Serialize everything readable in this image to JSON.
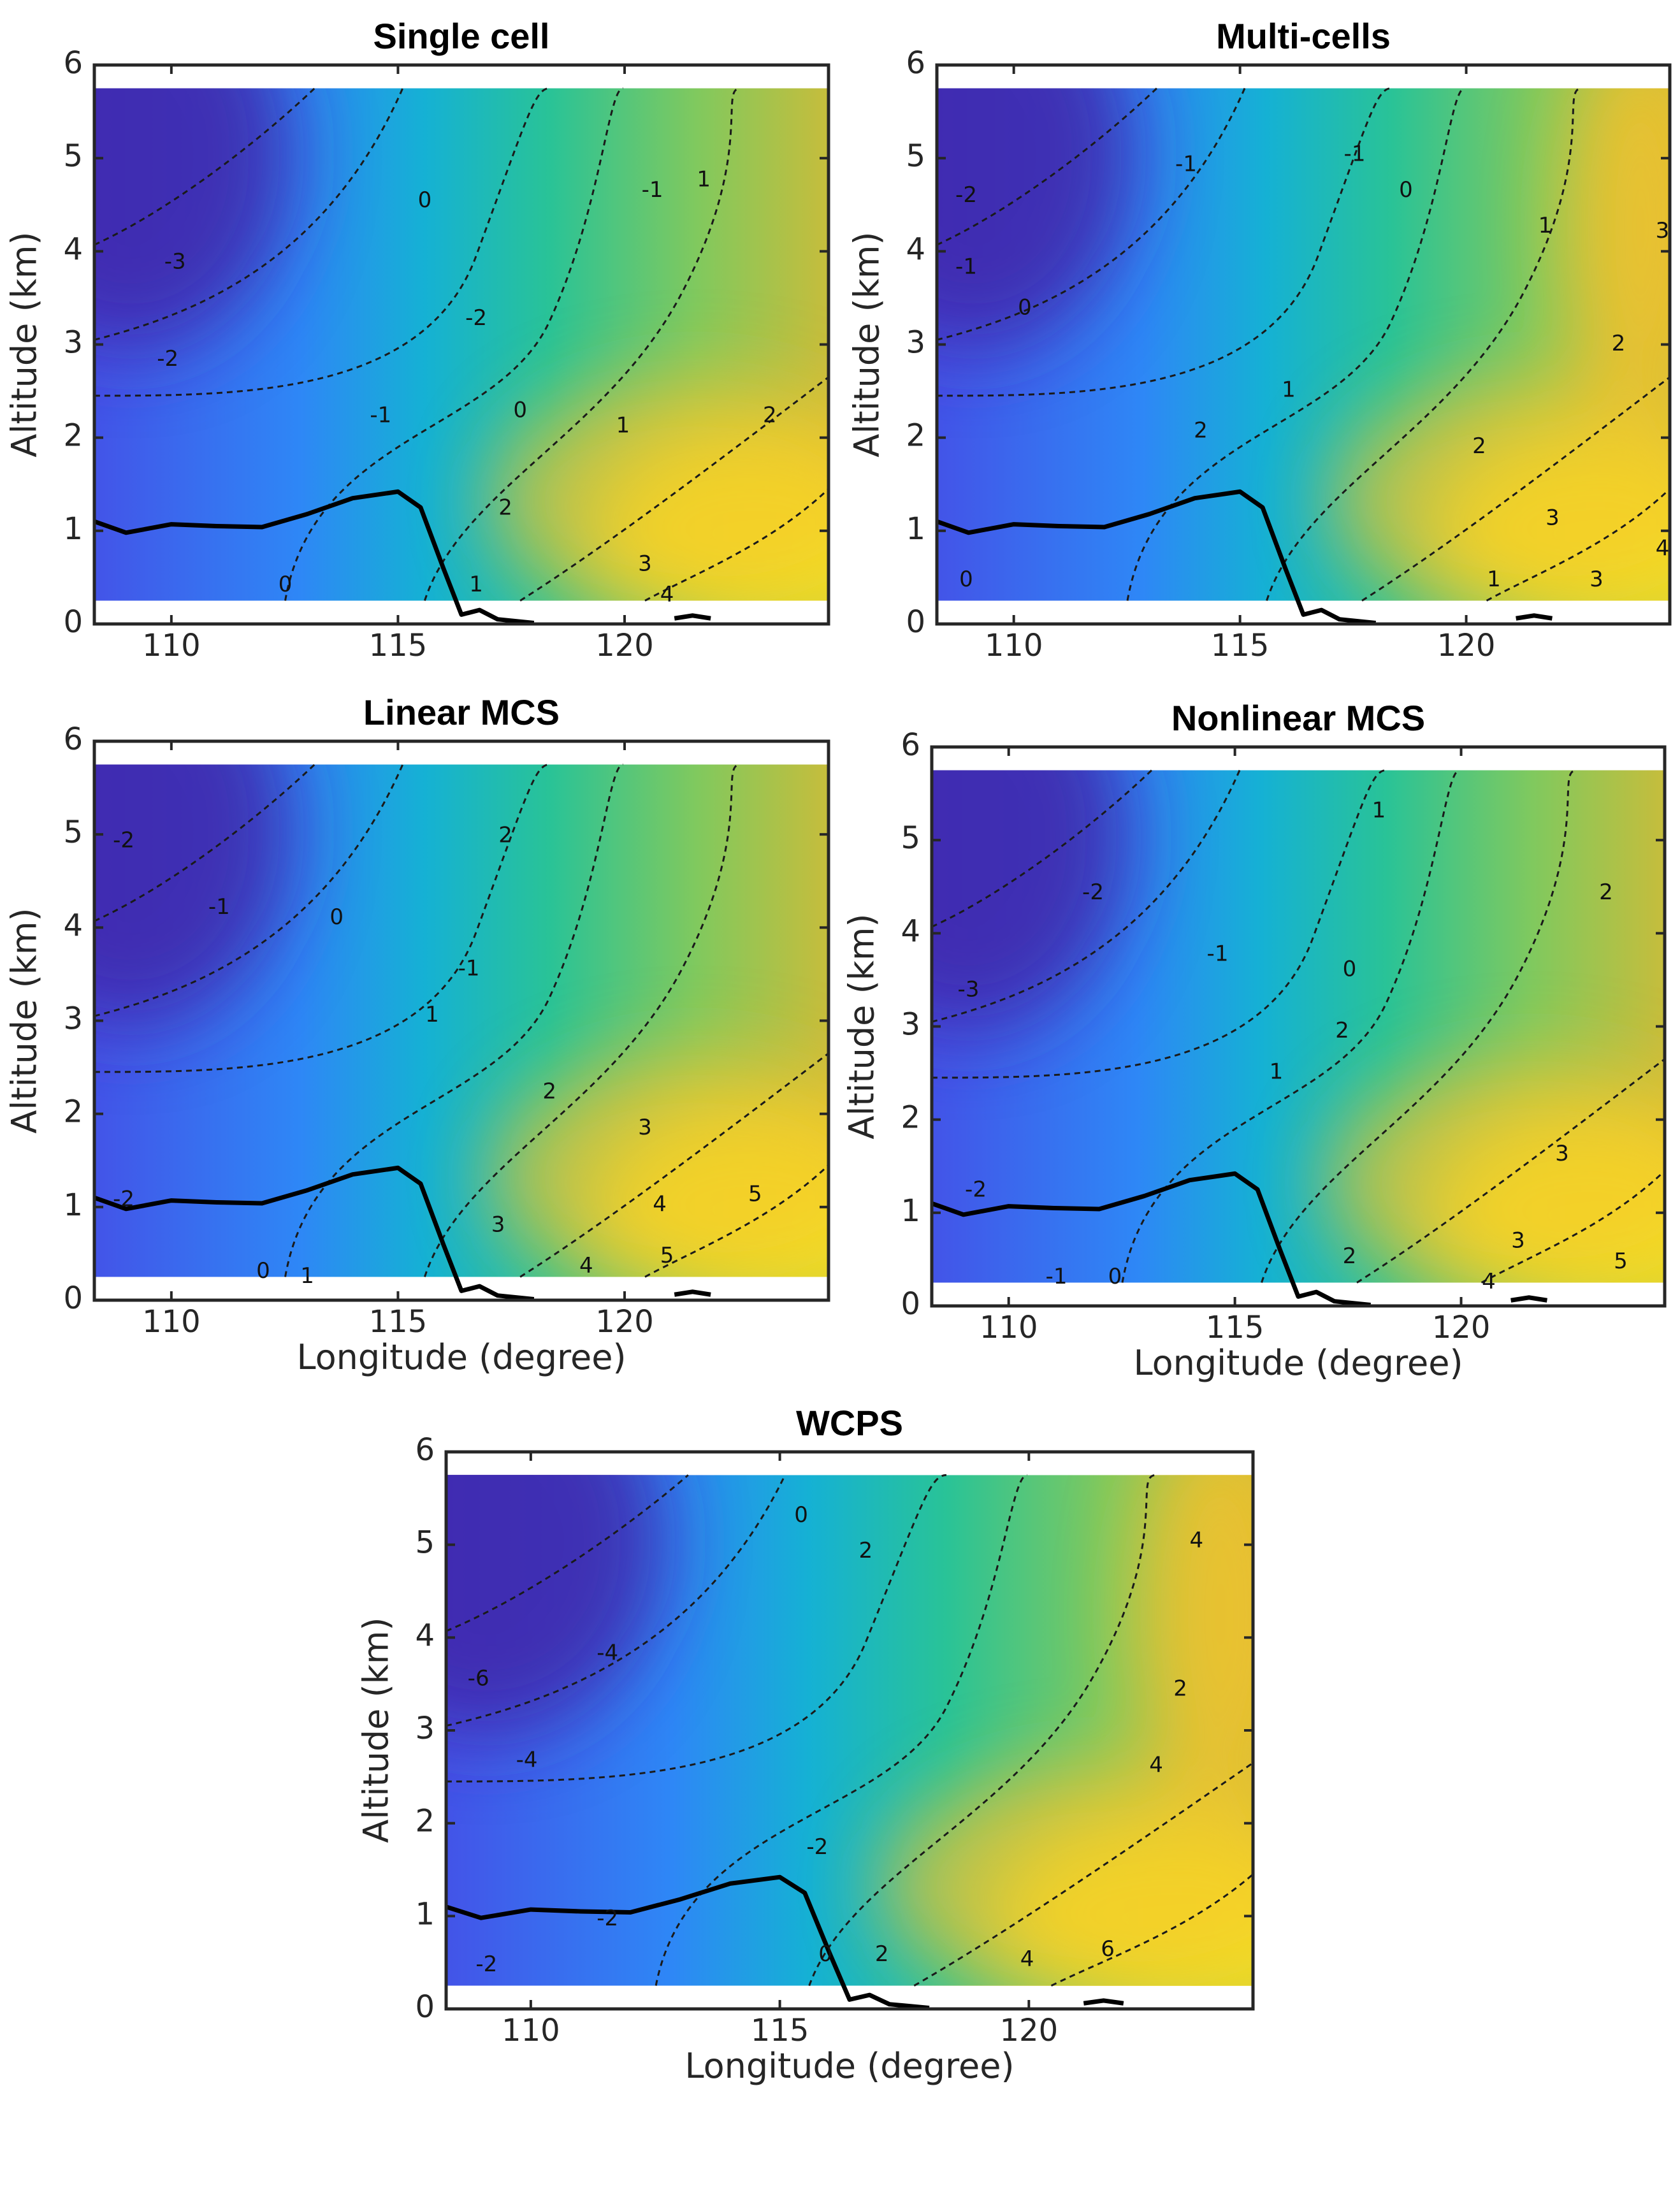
{
  "figure": {
    "y_axis_label": "Altitude (km)",
    "x_axis_label": "Longitude (degree)",
    "terrain_line_color": "#000000",
    "colormap": [
      "#3e26a8",
      "#4354e8",
      "#2e87f6",
      "#15b1d4",
      "#29c397",
      "#80c95e",
      "#c6bd3c",
      "#f5c22c",
      "#f9fb14"
    ]
  },
  "chart_data": [
    {
      "type": "heatmap",
      "title": "Single cell",
      "xlabel": "",
      "ylabel": "Altitude (km)",
      "xlim": [
        108.3,
        124.5
      ],
      "ylim": [
        0,
        6
      ],
      "xticks": [
        110,
        115,
        120
      ],
      "yticks": [
        0,
        1,
        2,
        3,
        4,
        5,
        6
      ],
      "contour_labels": [
        "-3",
        "-2",
        "-2",
        "-1",
        "-1",
        "0",
        "0",
        "0",
        "1",
        "1",
        "1",
        "2",
        "2",
        "3",
        "4"
      ]
    },
    {
      "type": "heatmap",
      "title": "Multi-cells",
      "xlabel": "",
      "ylabel": "Altitude (km)",
      "xlim": [
        108.3,
        124.5
      ],
      "ylim": [
        0,
        6
      ],
      "xticks": [
        110,
        115,
        120
      ],
      "yticks": [
        0,
        1,
        2,
        3,
        4,
        5,
        6
      ],
      "contour_labels": [
        "-2",
        "-1",
        "-1",
        "-1",
        "0",
        "0",
        "0",
        "1",
        "1",
        "1",
        "2",
        "2",
        "2",
        "3",
        "3",
        "3",
        "4"
      ]
    },
    {
      "type": "heatmap",
      "title": "Linear MCS",
      "xlabel": "Longitude (degree)",
      "ylabel": "Altitude (km)",
      "xlim": [
        108.3,
        124.5
      ],
      "ylim": [
        0,
        6
      ],
      "xticks": [
        110,
        115,
        120
      ],
      "yticks": [
        0,
        1,
        2,
        3,
        4,
        5,
        6
      ],
      "contour_labels": [
        "-2",
        "-2",
        "-1",
        "-1",
        "0",
        "0",
        "1",
        "1",
        "2",
        "2",
        "3",
        "3",
        "4",
        "4",
        "5",
        "5"
      ]
    },
    {
      "type": "heatmap",
      "title": "Nonlinear MCS",
      "xlabel": "Longitude (degree)",
      "ylabel": "Altitude (km)",
      "xlim": [
        108.3,
        124.5
      ],
      "ylim": [
        0,
        6
      ],
      "xticks": [
        110,
        115,
        120
      ],
      "yticks": [
        0,
        1,
        2,
        3,
        4,
        5,
        6
      ],
      "contour_labels": [
        "-3",
        "-2",
        "-2",
        "-1",
        "-1",
        "0",
        "0",
        "1",
        "1",
        "2",
        "2",
        "2",
        "3",
        "3",
        "4",
        "5"
      ]
    },
    {
      "type": "heatmap",
      "title": "WCPS",
      "xlabel": "Longitude (degree)",
      "ylabel": "Altitude (km)",
      "xlim": [
        108.3,
        124.5
      ],
      "ylim": [
        0,
        6
      ],
      "xticks": [
        110,
        115,
        120
      ],
      "yticks": [
        0,
        1,
        2,
        3,
        4,
        5,
        6
      ],
      "contour_labels": [
        "-6",
        "-4",
        "-4",
        "-2",
        "-2",
        "-2",
        "0",
        "0",
        "2",
        "2",
        "2",
        "4",
        "4",
        "4",
        "6"
      ]
    }
  ]
}
